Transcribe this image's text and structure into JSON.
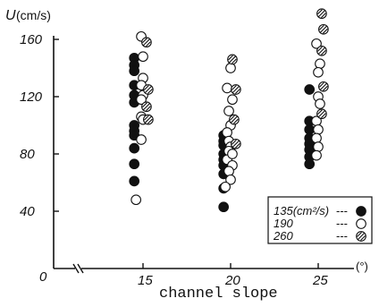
{
  "chart_data": {
    "type": "scatter",
    "ylabel_symbol": "U",
    "ylabel_unit": "(cm/s)",
    "xlabel": "channel slope",
    "xunit": "(°)",
    "origin_label": "0",
    "xticks": [
      "15",
      "20",
      "25"
    ],
    "yticks": [
      "40",
      "80",
      "120",
      "160"
    ],
    "xlim": [
      10,
      28
    ],
    "ylim": [
      0,
      170
    ],
    "grid": false,
    "legend_placement": "bottom-right",
    "series": [
      {
        "name": "135(cm²/s)",
        "legend_label": "135(cm²/s)",
        "legend_dashes": "---",
        "marker": "filled-circle",
        "x": [
          14.5,
          14.5,
          14.5,
          14.5,
          14.5,
          14.5,
          14.5,
          14.5,
          14.5,
          14.5,
          14.5,
          14.5,
          19.6,
          19.6,
          19.6,
          19.6,
          19.6,
          19.6,
          19.6,
          19.6,
          19.6,
          24.5,
          24.5,
          24.5,
          24.5,
          24.5,
          24.5,
          24.5,
          24.5
        ],
        "y": [
          147,
          142,
          138,
          128,
          121,
          116,
          100,
          96,
          93,
          84,
          73,
          61,
          93,
          89,
          86,
          80,
          76,
          72,
          66,
          56,
          43,
          125,
          103,
          97,
          91,
          87,
          83,
          78,
          73
        ]
      },
      {
        "name": "190",
        "legend_label": "190",
        "legend_dashes": "---",
        "marker": "open-circle",
        "x": [
          14.9,
          15.0,
          15.0,
          14.9,
          15.0,
          14.9,
          14.9,
          15.0,
          14.9,
          14.6,
          20.0,
          19.8,
          20.1,
          19.9,
          20.0,
          19.8,
          19.9,
          20.0,
          19.9,
          19.8,
          20.1,
          19.9,
          20.0,
          19.7,
          20.1,
          24.9,
          25.1,
          25.0,
          25.0,
          25.1,
          24.9,
          25.0,
          24.9,
          25.0,
          24.9
        ],
        "y": [
          162,
          148,
          133,
          128,
          121,
          118,
          106,
          104,
          90,
          48,
          140,
          126,
          118,
          110,
          100,
          95,
          89,
          85,
          82,
          76,
          72,
          68,
          62,
          57,
          80,
          157,
          143,
          137,
          120,
          115,
          103,
          97,
          91,
          85,
          79
        ]
      },
      {
        "name": "260",
        "legend_label": "260",
        "legend_dashes": "---",
        "marker": "hatched-circle",
        "x": [
          15.2,
          15.3,
          15.2,
          15.3,
          20.1,
          20.3,
          20.2,
          20.3,
          25.2,
          25.3,
          25.2,
          25.3,
          25.2
        ],
        "y": [
          158,
          125,
          113,
          104,
          146,
          125,
          104,
          87,
          178,
          167,
          152,
          127,
          108
        ]
      }
    ]
  }
}
